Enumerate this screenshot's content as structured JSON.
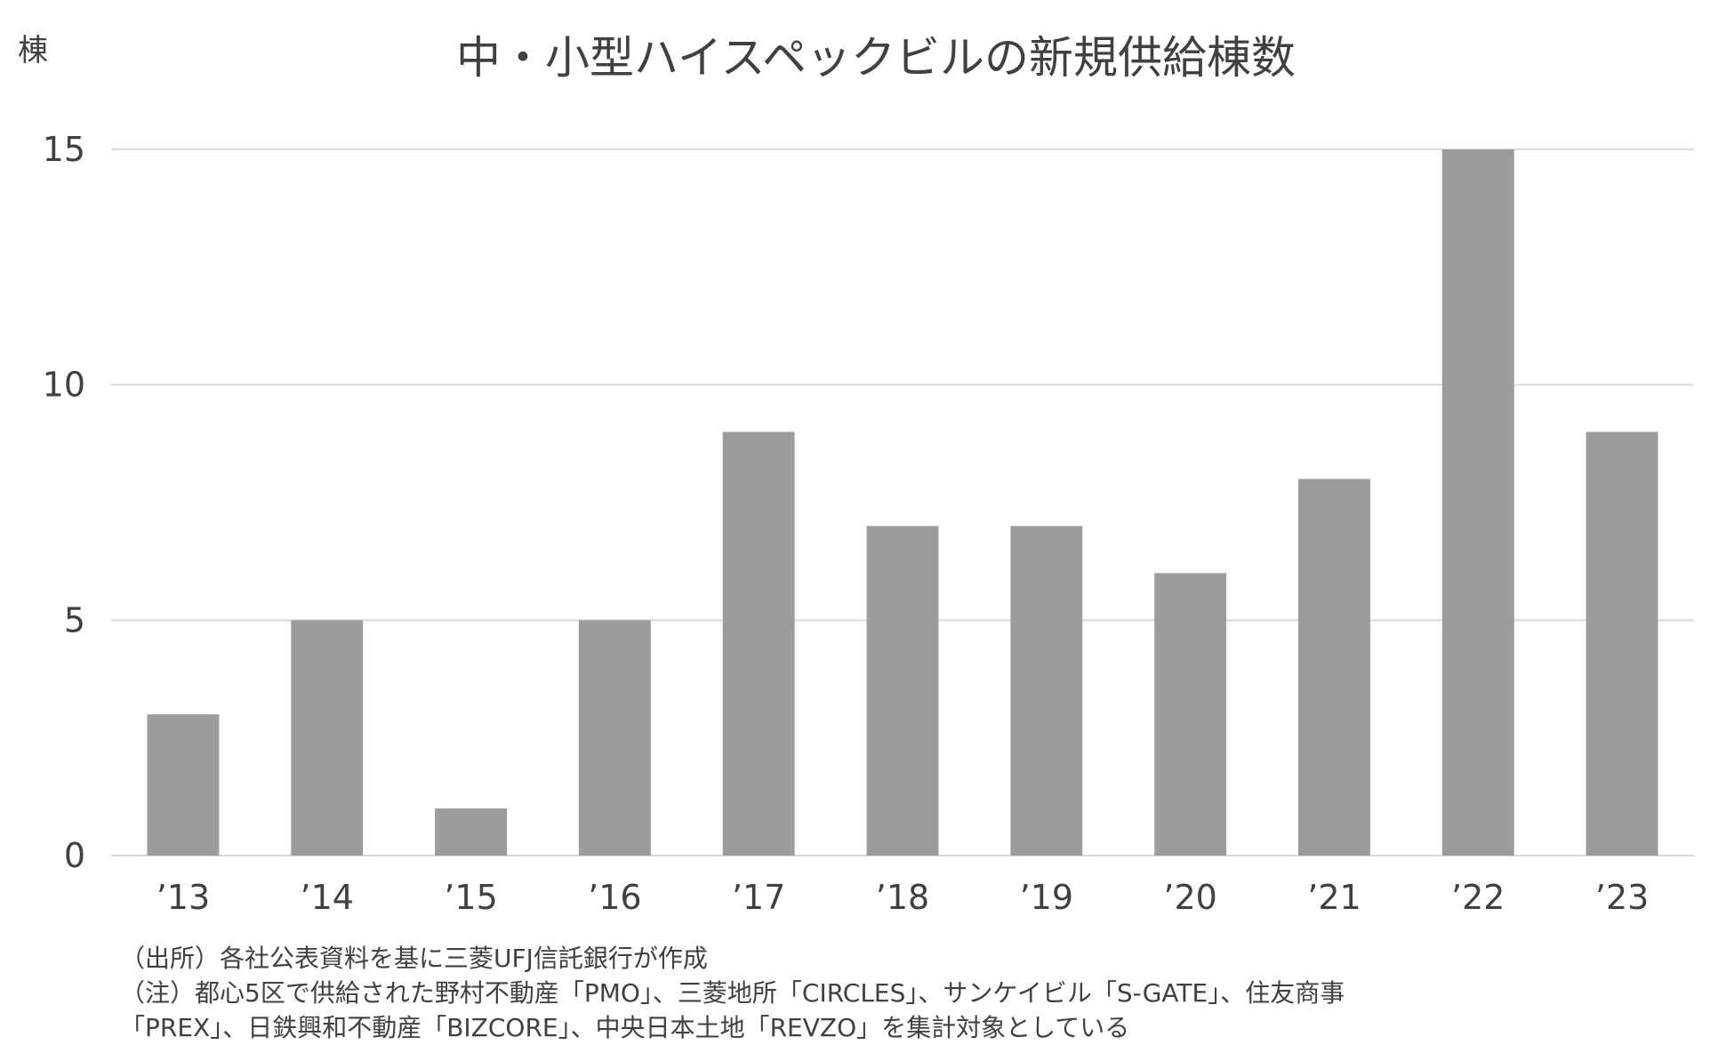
{
  "chart_data": {
    "type": "bar",
    "title": "中・小型ハイスペックビルの新規供給棟数",
    "ylabel": "棟",
    "xlabel": "",
    "categories": [
      "’13",
      "’14",
      "’15",
      "’16",
      "’17",
      "’18",
      "’19",
      "’20",
      "’21",
      "’22",
      "’23"
    ],
    "values": [
      3,
      5,
      1,
      5,
      9,
      7,
      7,
      6,
      8,
      15,
      9
    ],
    "ylim": [
      0,
      15
    ],
    "yticks": [
      0,
      5,
      10,
      15
    ],
    "grid": true,
    "legend": "none",
    "colors": {
      "bar": "#9c9c9c",
      "grid": "#d9d9d9",
      "text": "#404040"
    }
  },
  "notes": {
    "source": "（出所）各社公表資料を基に三菱UFJ信託銀行が作成",
    "note_line1": "（注）都心5区で供給された野村不動産「PMO」、三菱地所「CIRCLES」、サンケイビル「S-GATE」、住友商事",
    "note_line2": "「PREX」、日鉄興和不動産「BIZCORE」、中央日本土地「REVZO」を集計対象としている"
  }
}
